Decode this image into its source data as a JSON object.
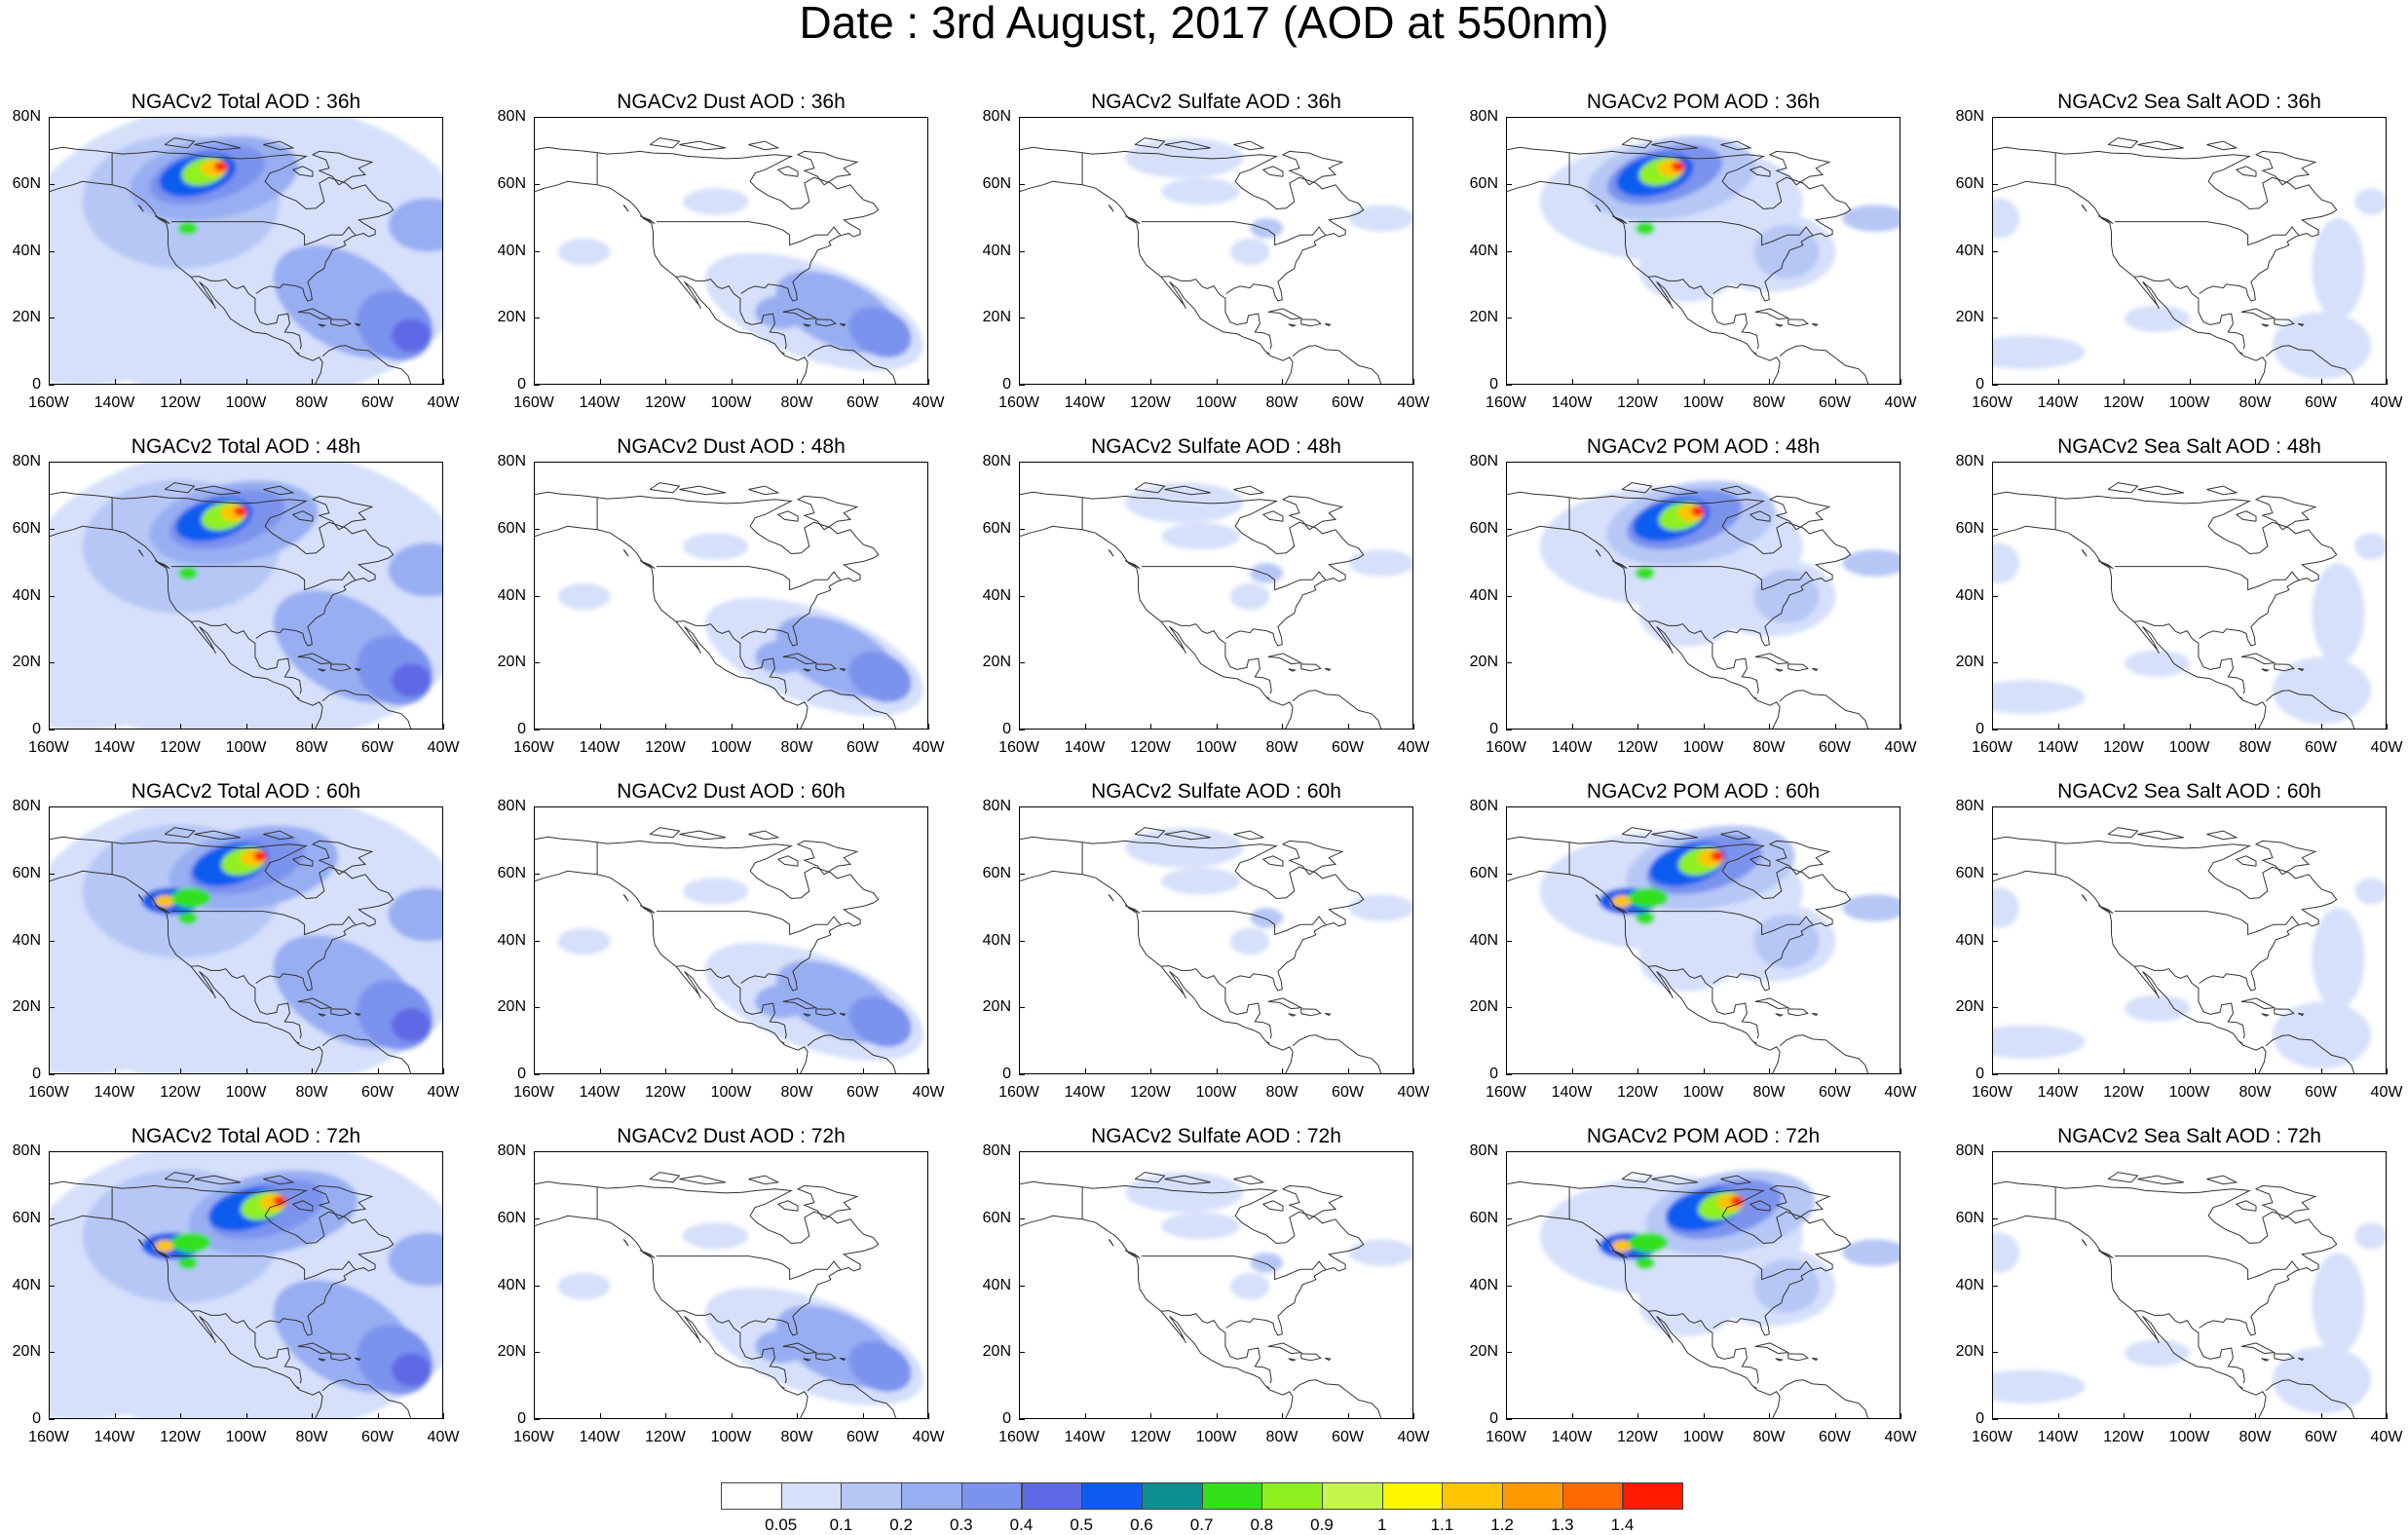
{
  "title": "Date : 3rd August, 2017 (AOD at 550nm)",
  "rows": [
    "36h",
    "48h",
    "60h",
    "72h"
  ],
  "panel_titles": [
    [
      "NGACv2 Total AOD : 36h",
      "NGACv2 Dust AOD : 36h",
      "NGACv2 Sulfate AOD : 36h",
      "NGACv2 POM AOD : 36h",
      "NGACv2 Sea Salt AOD : 36h"
    ],
    [
      "NGACv2 Total AOD : 48h",
      "NGACv2 Dust AOD : 48h",
      "NGACv2 Sulfate AOD : 48h",
      "NGACv2 POM AOD : 48h",
      "NGACv2 Sea Salt AOD : 48h"
    ],
    [
      "NGACv2 Total AOD : 60h",
      "NGACv2 Dust AOD : 60h",
      "NGACv2 Sulfate AOD : 60h",
      "NGACv2 POM AOD : 60h",
      "NGACv2 Sea Salt AOD : 60h"
    ],
    [
      "NGACv2 Total AOD : 72h",
      "NGACv2 Dust AOD : 72h",
      "NGACv2 Sulfate AOD : 72h",
      "NGACv2 POM AOD : 72h",
      "NGACv2 Sea Salt  AOD : 72h"
    ]
  ],
  "y_ticks": [
    "80N",
    "60N",
    "40N",
    "20N",
    "0"
  ],
  "x_ticks": [
    "160W",
    "140W",
    "120W",
    "100W",
    "80W",
    "60W",
    "40W"
  ],
  "colorbar": {
    "labels": [
      "0.05",
      "0.1",
      "0.2",
      "0.3",
      "0.4",
      "0.5",
      "0.6",
      "0.7",
      "0.8",
      "0.9",
      "1",
      "1.1",
      "1.2",
      "1.3",
      "1.4"
    ],
    "colors": [
      "#ffffff",
      "#d6e0fb",
      "#b6c7f6",
      "#98aef2",
      "#7b93ee",
      "#5f69e6",
      "#0f5cf0",
      "#0e8f8f",
      "#33e01a",
      "#8ff020",
      "#c4f74a",
      "#fff700",
      "#ffc400",
      "#ff9900",
      "#ff6a00",
      "#ff1a00"
    ]
  }
}
